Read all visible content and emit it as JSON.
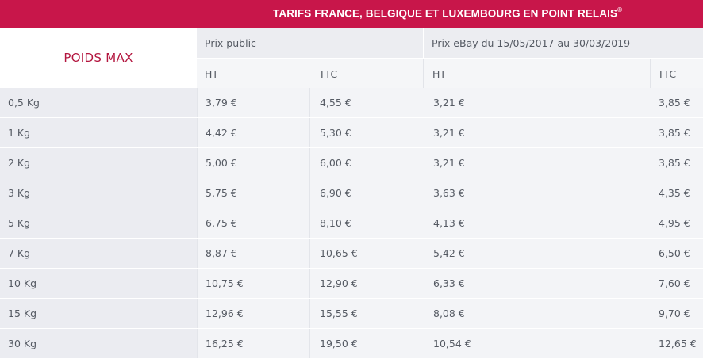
{
  "title": {
    "text": "TARIFS FRANCE, BELGIQUE ET LUXEMBOURG EN POINT RELAIS",
    "mark": "®"
  },
  "table": {
    "weight_header": "POIDS MAX",
    "groups": [
      {
        "label": "Prix public"
      },
      {
        "label": "Prix eBay du 15/05/2017 au 30/03/2019"
      }
    ],
    "subheaders": [
      "HT",
      "TTC",
      "HT",
      "TTC"
    ],
    "rows": [
      {
        "weight": "0,5 Kg",
        "public_ht": "3,79 €",
        "public_ttc": "4,55 €",
        "ebay_ht": "3,21 €",
        "ebay_ttc": "3,85 €"
      },
      {
        "weight": "1 Kg",
        "public_ht": "4,42 €",
        "public_ttc": "5,30 €",
        "ebay_ht": "3,21 €",
        "ebay_ttc": "3,85 €"
      },
      {
        "weight": "2 Kg",
        "public_ht": "5,00 €",
        "public_ttc": "6,00 €",
        "ebay_ht": "3,21 €",
        "ebay_ttc": "3,85 €"
      },
      {
        "weight": "3 Kg",
        "public_ht": "5,75 €",
        "public_ttc": "6,90 €",
        "ebay_ht": "3,63 €",
        "ebay_ttc": "4,35 €"
      },
      {
        "weight": "5 Kg",
        "public_ht": "6,75 €",
        "public_ttc": "8,10 €",
        "ebay_ht": "4,13 €",
        "ebay_ttc": "4,95 €"
      },
      {
        "weight": "7 Kg",
        "public_ht": "8,87 €",
        "public_ttc": "10,65 €",
        "ebay_ht": "5,42 €",
        "ebay_ttc": "6,50 €"
      },
      {
        "weight": "10 Kg",
        "public_ht": "10,75 €",
        "public_ttc": "12,90 €",
        "ebay_ht": "6,33 €",
        "ebay_ttc": "7,60 €"
      },
      {
        "weight": "15 Kg",
        "public_ht": "12,96 €",
        "public_ttc": "15,55 €",
        "ebay_ht": "8,08 €",
        "ebay_ttc": "9,70 €"
      },
      {
        "weight": "30 Kg",
        "public_ht": "16,25 €",
        "public_ttc": "19,50 €",
        "ebay_ht": "10,54 €",
        "ebay_ttc": "12,65 €"
      }
    ]
  },
  "colors": {
    "brand": "#c8164a",
    "weight_label": "#b3163f"
  }
}
